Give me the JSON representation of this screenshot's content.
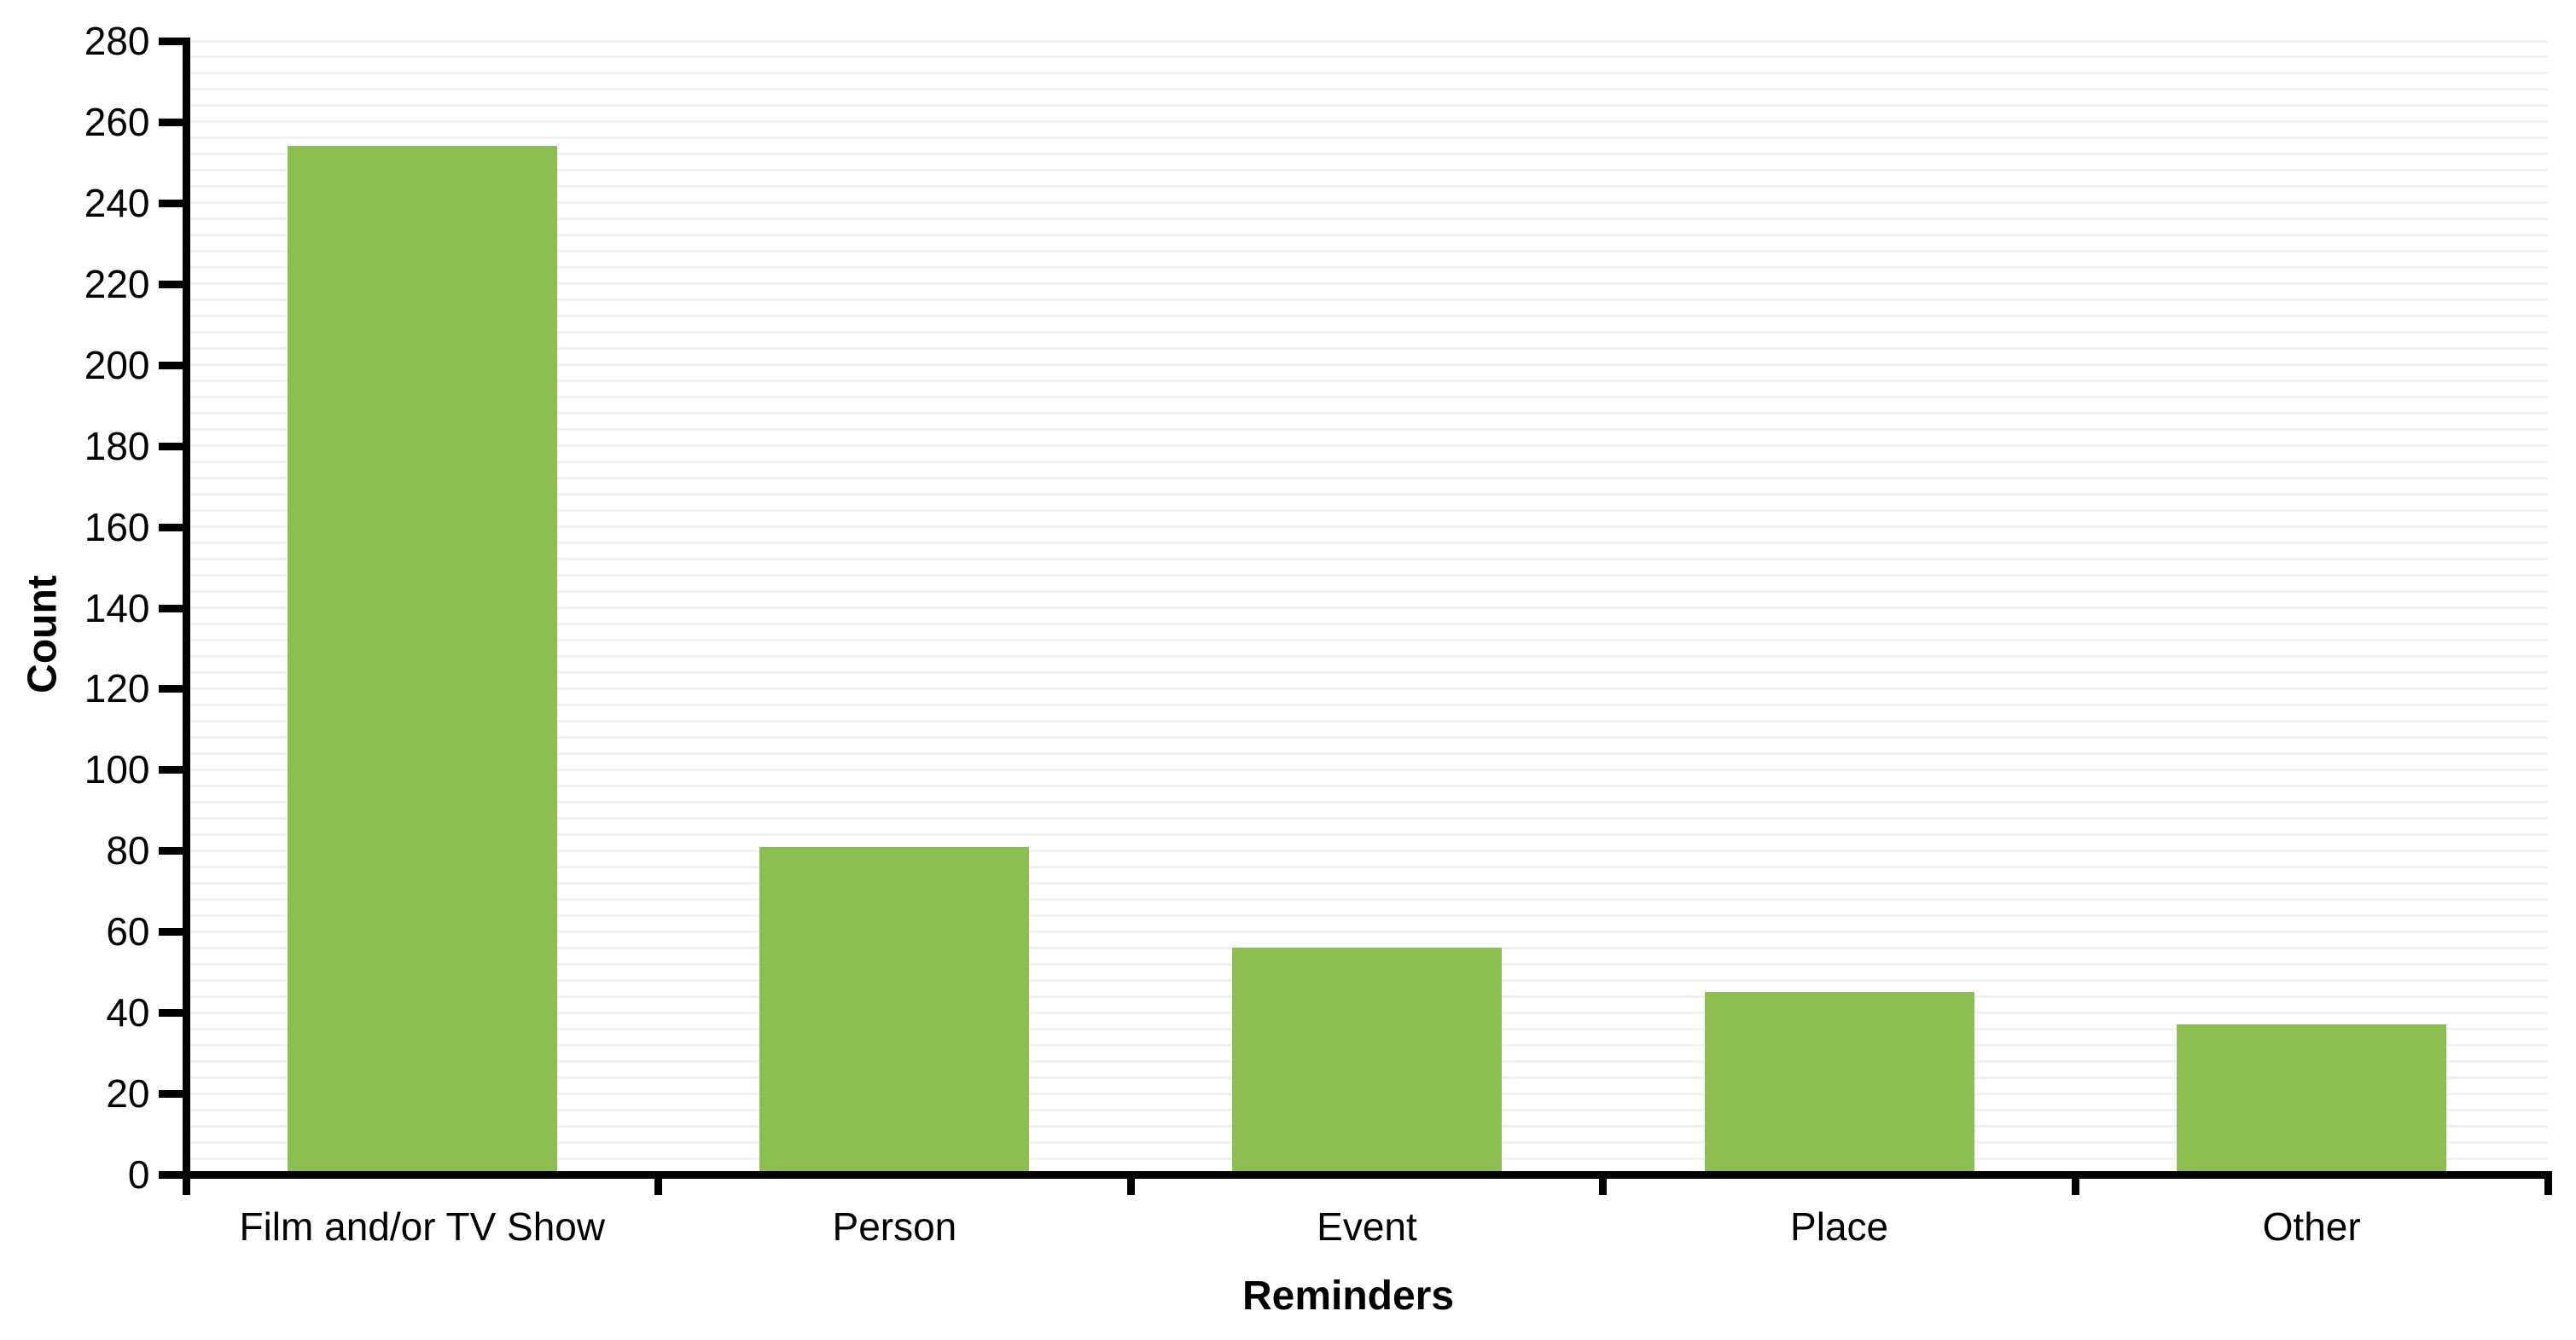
{
  "chart_data": {
    "type": "bar",
    "title": "",
    "categories": [
      "Film and/or TV Show",
      "Person",
      "Event",
      "Place",
      "Other"
    ],
    "values": [
      254,
      81,
      56,
      45,
      37
    ],
    "xlabel": "Reminders",
    "ylabel": "Count",
    "ylim": [
      0,
      280
    ],
    "ytick_step": 20,
    "ytick_labels": [
      "0",
      "20",
      "40",
      "60",
      "80",
      "100",
      "120",
      "140",
      "160",
      "180",
      "200",
      "220",
      "240",
      "260",
      "280"
    ],
    "minor_gridline_step": 4,
    "grid": true,
    "legend_position": "none",
    "bar_color": "#8CBE52",
    "grid_color": "#F2F2F2",
    "axis_color": "#000000",
    "text_color": "#000000",
    "background_color": "#FFFFFF"
  }
}
